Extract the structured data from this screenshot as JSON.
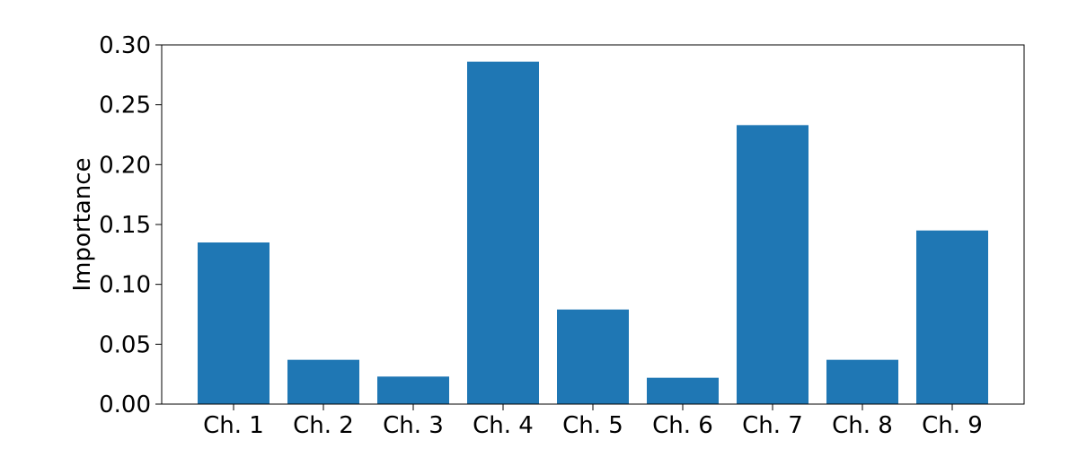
{
  "chart_data": {
    "type": "bar",
    "title": "",
    "xlabel": "",
    "ylabel": "Importance",
    "categories": [
      "Ch. 1",
      "Ch. 2",
      "Ch. 3",
      "Ch. 4",
      "Ch. 5",
      "Ch. 6",
      "Ch. 7",
      "Ch. 8",
      "Ch. 9"
    ],
    "values": [
      0.135,
      0.037,
      0.023,
      0.286,
      0.079,
      0.022,
      0.233,
      0.037,
      0.145
    ],
    "ylim": [
      0,
      0.3
    ],
    "yticks": [
      0.0,
      0.05,
      0.1,
      0.15,
      0.2,
      0.25,
      0.3
    ],
    "ytick_labels": [
      "0.00",
      "0.05",
      "0.10",
      "0.15",
      "0.20",
      "0.25",
      "0.30"
    ],
    "grid": false,
    "legend": "none",
    "bar_color": "#1f77b4"
  }
}
